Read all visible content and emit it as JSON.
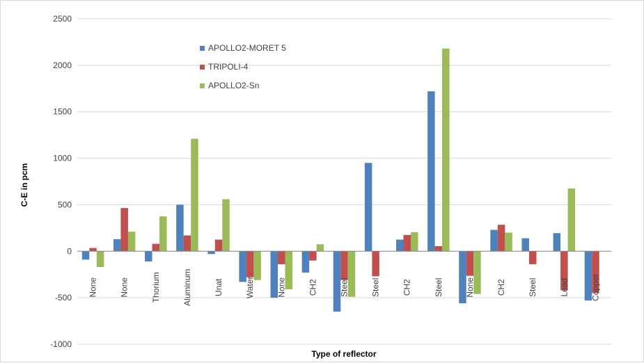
{
  "chart_data": {
    "type": "bar",
    "title": "",
    "xlabel": "Type of reflector",
    "ylabel": "C-E in pcm",
    "ylim": [
      -1000,
      2500
    ],
    "yticks": [
      -1000,
      -500,
      0,
      500,
      1000,
      1500,
      2000,
      2500
    ],
    "grid": true,
    "legend_position": "top-center",
    "categories": [
      "None",
      "None",
      "Thorium",
      "Aluminum",
      "Unat",
      "Water",
      "None",
      "CH2",
      "Steel",
      "Steel",
      "CH2",
      "Steel",
      "None",
      "CH2",
      "Steel",
      "Lead",
      "Copper"
    ],
    "series": [
      {
        "name": "APOLLO2-MORET 5",
        "color": "#4f81bd",
        "values": [
          -90,
          130,
          -110,
          500,
          -30,
          -330,
          -500,
          -230,
          -650,
          950,
          125,
          1720,
          -560,
          230,
          140,
          195,
          -530
        ]
      },
      {
        "name": "TRIPOLI-4",
        "color": "#c0504d",
        "values": [
          35,
          465,
          80,
          170,
          125,
          -280,
          -140,
          -100,
          -310,
          -270,
          175,
          55,
          -265,
          285,
          -140,
          -420,
          -450
        ]
      },
      {
        "name": "APOLLO2-Sn",
        "color": "#9bbb59",
        "values": [
          -170,
          210,
          375,
          1210,
          560,
          -310,
          -410,
          75,
          -490,
          0,
          205,
          2180,
          -460,
          200,
          0,
          675,
          0
        ]
      }
    ]
  }
}
